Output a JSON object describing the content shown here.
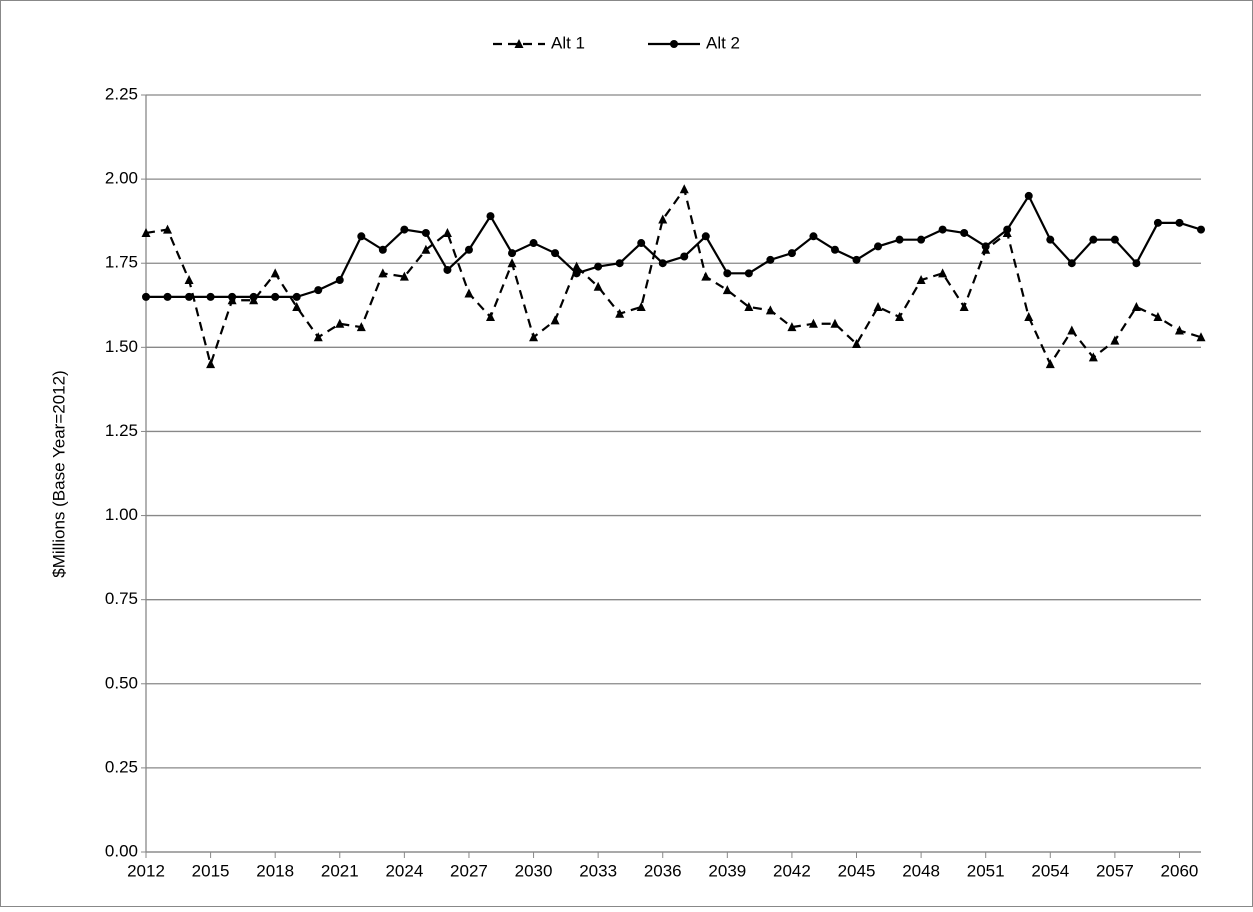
{
  "chart_data": {
    "type": "line",
    "y_label": "$Millions (Base Year=2012)",
    "x": [
      2012,
      2013,
      2014,
      2015,
      2016,
      2017,
      2018,
      2019,
      2020,
      2021,
      2022,
      2023,
      2024,
      2025,
      2026,
      2027,
      2028,
      2029,
      2030,
      2031,
      2032,
      2033,
      2034,
      2035,
      2036,
      2037,
      2038,
      2039,
      2040,
      2041,
      2042,
      2043,
      2044,
      2045,
      2046,
      2047,
      2048,
      2049,
      2050,
      2051,
      2052,
      2053,
      2054,
      2055,
      2056,
      2057,
      2058,
      2059,
      2060,
      2061
    ],
    "series": [
      {
        "name": "Alt 1",
        "color": "#000000",
        "dash": true,
        "marker": "triangle",
        "values": [
          1.84,
          1.85,
          1.7,
          1.45,
          1.64,
          1.64,
          1.72,
          1.62,
          1.53,
          1.57,
          1.56,
          1.72,
          1.71,
          1.79,
          1.84,
          1.66,
          1.59,
          1.75,
          1.53,
          1.58,
          1.74,
          1.68,
          1.6,
          1.62,
          1.88,
          1.97,
          1.71,
          1.67,
          1.62,
          1.61,
          1.56,
          1.57,
          1.57,
          1.51,
          1.62,
          1.59,
          1.7,
          1.72,
          1.62,
          1.79,
          1.84,
          1.59,
          1.45,
          1.55,
          1.47,
          1.52,
          1.62,
          1.59,
          1.55,
          1.53
        ]
      },
      {
        "name": "Alt 2",
        "color": "#000000",
        "dash": false,
        "marker": "circle",
        "values": [
          1.65,
          1.65,
          1.65,
          1.65,
          1.65,
          1.65,
          1.65,
          1.65,
          1.67,
          1.7,
          1.83,
          1.79,
          1.85,
          1.84,
          1.73,
          1.79,
          1.89,
          1.78,
          1.81,
          1.78,
          1.72,
          1.74,
          1.75,
          1.81,
          1.75,
          1.77,
          1.83,
          1.72,
          1.72,
          1.76,
          1.78,
          1.83,
          1.79,
          1.76,
          1.8,
          1.82,
          1.82,
          1.85,
          1.84,
          1.8,
          1.85,
          1.95,
          1.82,
          1.75,
          1.82,
          1.82,
          1.75,
          1.87,
          1.87,
          1.85
        ]
      }
    ],
    "xlim": [
      2012,
      2061
    ],
    "xticks": [
      2012,
      2015,
      2018,
      2021,
      2024,
      2027,
      2030,
      2033,
      2036,
      2039,
      2042,
      2045,
      2048,
      2051,
      2054,
      2057,
      2060
    ],
    "ylim": [
      0,
      2.25
    ],
    "yticks": [
      {
        "value": 0,
        "label": "0.00"
      },
      {
        "value": 0.25,
        "label": "0.25"
      },
      {
        "value": 0.5,
        "label": "0.50"
      },
      {
        "value": 0.75,
        "label": "0.75"
      },
      {
        "value": 1,
        "label": "1.00"
      },
      {
        "value": 1.25,
        "label": "1.25"
      },
      {
        "value": 1.5,
        "label": "1.50"
      },
      {
        "value": 1.75,
        "label": "1.75"
      },
      {
        "value": 2,
        "label": "2.00"
      },
      {
        "value": 2.25,
        "label": "2.25"
      }
    ],
    "grid": true,
    "legend": "top"
  }
}
